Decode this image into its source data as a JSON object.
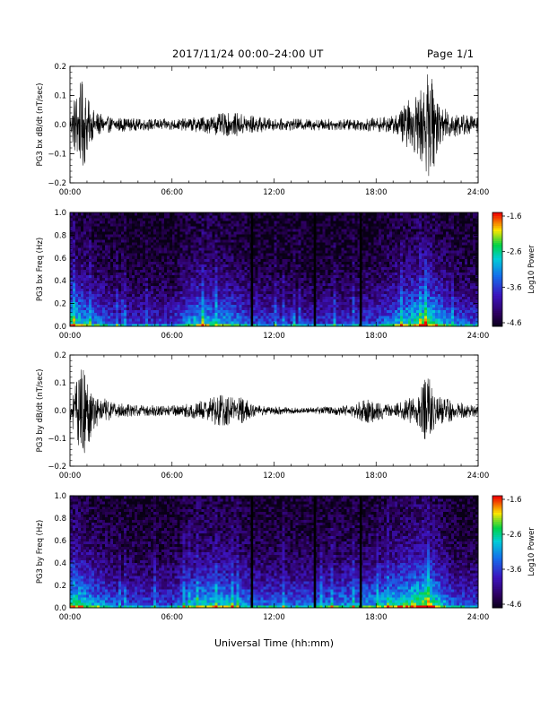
{
  "header": {
    "date_range": "2017/11/24  00:00–24:00 UT",
    "page": "Page 1/1"
  },
  "xlabel": "Universal Time (hh:mm)",
  "chart_data": [
    {
      "type": "line",
      "ylabel": "PG3 bx dB/dt (nT/sec)",
      "x_ticks": [
        "00:00",
        "06:00",
        "12:00",
        "18:00",
        "24:00"
      ],
      "xlim": [
        0,
        24
      ],
      "ylim": [
        -0.2,
        0.2
      ],
      "y_ticks": [
        "0.2",
        "0.1",
        "0.0",
        "−0.1",
        "−0.2"
      ],
      "envelope": [
        {
          "t": 0.0,
          "a": 0.02
        },
        {
          "t": 0.3,
          "a": 0.12
        },
        {
          "t": 0.8,
          "a": 0.16
        },
        {
          "t": 1.2,
          "a": 0.06
        },
        {
          "t": 2.0,
          "a": 0.03
        },
        {
          "t": 4.0,
          "a": 0.02
        },
        {
          "t": 6.5,
          "a": 0.02
        },
        {
          "t": 8.0,
          "a": 0.03
        },
        {
          "t": 9.0,
          "a": 0.04
        },
        {
          "t": 10.0,
          "a": 0.04
        },
        {
          "t": 11.0,
          "a": 0.03
        },
        {
          "t": 12.0,
          "a": 0.02
        },
        {
          "t": 14.0,
          "a": 0.02
        },
        {
          "t": 17.0,
          "a": 0.02
        },
        {
          "t": 19.0,
          "a": 0.03
        },
        {
          "t": 20.5,
          "a": 0.12
        },
        {
          "t": 21.2,
          "a": 0.19
        },
        {
          "t": 21.8,
          "a": 0.06
        },
        {
          "t": 23.0,
          "a": 0.04
        },
        {
          "t": 24.0,
          "a": 0.03
        }
      ]
    },
    {
      "type": "heatmap",
      "ylabel": "PG3 bx Freq (Hz)",
      "x_ticks": [
        "00:00",
        "06:00",
        "12:00",
        "18:00",
        "24:00"
      ],
      "xlim": [
        0,
        24
      ],
      "ylim": [
        0,
        1
      ],
      "y_ticks": [
        "1.0",
        "0.8",
        "0.6",
        "0.4",
        "0.2",
        "0.0"
      ],
      "colorbar_label": "Log10 Power",
      "colorbar_ticks": [
        "-1.6",
        "-2.6",
        "-3.6",
        "-4.6"
      ],
      "gaps_ut": [
        10.7,
        14.4,
        17.1
      ],
      "activity": [
        {
          "t": 0,
          "p": 0.7
        },
        {
          "t": 1,
          "p": 0.55
        },
        {
          "t": 3,
          "p": 0.35
        },
        {
          "t": 6,
          "p": 0.35
        },
        {
          "t": 7.5,
          "p": 0.6
        },
        {
          "t": 9,
          "p": 0.55
        },
        {
          "t": 11,
          "p": 0.4
        },
        {
          "t": 14,
          "p": 0.35
        },
        {
          "t": 18,
          "p": 0.4
        },
        {
          "t": 21,
          "p": 0.75
        },
        {
          "t": 22.5,
          "p": 0.45
        },
        {
          "t": 24,
          "p": 0.4
        }
      ]
    },
    {
      "type": "line",
      "ylabel": "PG3 by dB/dt (nT/sec)",
      "x_ticks": [
        "00:00",
        "06:00",
        "12:00",
        "18:00",
        "24:00"
      ],
      "xlim": [
        0,
        24
      ],
      "ylim": [
        -0.2,
        0.2
      ],
      "y_ticks": [
        "0.2",
        "0.1",
        "0.0",
        "−0.1",
        "−0.2"
      ],
      "envelope": [
        {
          "t": 0.0,
          "a": 0.03
        },
        {
          "t": 0.4,
          "a": 0.12
        },
        {
          "t": 0.8,
          "a": 0.17
        },
        {
          "t": 1.5,
          "a": 0.06
        },
        {
          "t": 2.5,
          "a": 0.03
        },
        {
          "t": 4.0,
          "a": 0.02
        },
        {
          "t": 6.5,
          "a": 0.02
        },
        {
          "t": 8.0,
          "a": 0.04
        },
        {
          "t": 9.0,
          "a": 0.06
        },
        {
          "t": 10.0,
          "a": 0.05
        },
        {
          "t": 11.0,
          "a": 0.02
        },
        {
          "t": 13.5,
          "a": 0.01
        },
        {
          "t": 16.5,
          "a": 0.02
        },
        {
          "t": 17.5,
          "a": 0.05
        },
        {
          "t": 19.0,
          "a": 0.02
        },
        {
          "t": 20.5,
          "a": 0.06
        },
        {
          "t": 21.0,
          "a": 0.13
        },
        {
          "t": 21.8,
          "a": 0.05
        },
        {
          "t": 23.0,
          "a": 0.03
        },
        {
          "t": 24.0,
          "a": 0.02
        }
      ]
    },
    {
      "type": "heatmap",
      "ylabel": "PG3 by Freq (Hz)",
      "x_ticks": [
        "00:00",
        "06:00",
        "12:00",
        "18:00",
        "24:00"
      ],
      "xlim": [
        0,
        24
      ],
      "ylim": [
        0,
        1
      ],
      "y_ticks": [
        "1.0",
        "0.8",
        "0.6",
        "0.4",
        "0.2",
        "0.0"
      ],
      "colorbar_label": "Log10 Power",
      "colorbar_ticks": [
        "-1.6",
        "-2.6",
        "-3.6",
        "-4.6"
      ],
      "gaps_ut": [
        10.7,
        14.4,
        17.1
      ],
      "activity": [
        {
          "t": 0,
          "p": 0.75
        },
        {
          "t": 1,
          "p": 0.6
        },
        {
          "t": 3,
          "p": 0.4
        },
        {
          "t": 6,
          "p": 0.4
        },
        {
          "t": 7.5,
          "p": 0.6
        },
        {
          "t": 9,
          "p": 0.6
        },
        {
          "t": 11,
          "p": 0.45
        },
        {
          "t": 14,
          "p": 0.45
        },
        {
          "t": 18,
          "p": 0.55
        },
        {
          "t": 21,
          "p": 0.8
        },
        {
          "t": 22.5,
          "p": 0.45
        },
        {
          "t": 24,
          "p": 0.4
        }
      ]
    }
  ]
}
